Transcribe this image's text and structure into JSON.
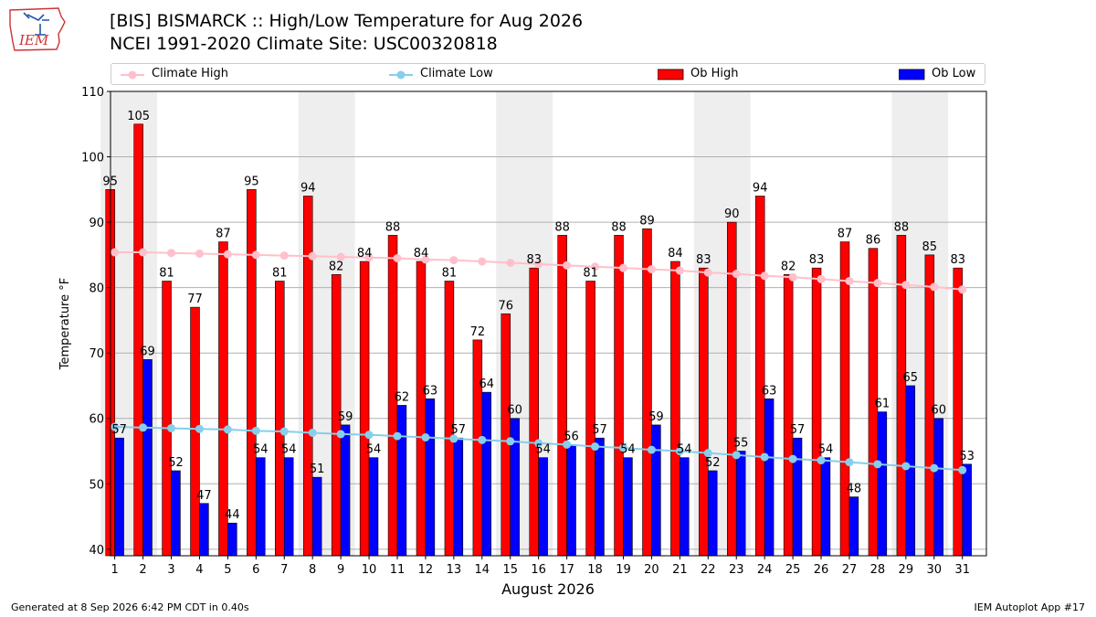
{
  "header": {
    "logo_text": "IEM",
    "title_line1": "[BIS] BISMARCK :: High/Low Temperature for Aug 2026",
    "title_line2": "NCEI 1991-2020 Climate Site: USC00320818"
  },
  "legend": {
    "location": "top",
    "items": [
      {
        "label": "Climate High",
        "kind": "line",
        "color": "#ffc0cb"
      },
      {
        "label": "Climate Low",
        "kind": "line",
        "color": "#87ceeb"
      },
      {
        "label": "Ob High",
        "kind": "bar",
        "color": "#ff0000"
      },
      {
        "label": "Ob Low",
        "kind": "bar",
        "color": "#0000ff"
      }
    ]
  },
  "chart_data": {
    "type": "bar",
    "title": "[BIS] BISMARCK :: High/Low Temperature for Aug 2026",
    "subtitle": "NCEI 1991-2020 Climate Site: USC00320818",
    "xlabel": "August 2026",
    "ylabel": "Temperature °F",
    "ylim": [
      39,
      110
    ],
    "yticks": [
      40,
      50,
      60,
      70,
      80,
      90,
      100,
      110
    ],
    "grid": "horizontal",
    "weekend_shading_days": [
      [
        1,
        2
      ],
      [
        8,
        9
      ],
      [
        15,
        16
      ],
      [
        22,
        23
      ],
      [
        29,
        30
      ]
    ],
    "categories": [
      "1",
      "2",
      "3",
      "4",
      "5",
      "6",
      "7",
      "8",
      "9",
      "10",
      "11",
      "12",
      "13",
      "14",
      "15",
      "16",
      "17",
      "18",
      "19",
      "20",
      "21",
      "22",
      "23",
      "24",
      "25",
      "26",
      "27",
      "28",
      "29",
      "30",
      "31"
    ],
    "series": [
      {
        "name": "Ob High",
        "kind": "bar",
        "color": "#ff0000",
        "values": [
          95,
          105,
          81,
          77,
          87,
          95,
          81,
          94,
          82,
          84,
          88,
          84,
          81,
          72,
          76,
          83,
          88,
          81,
          88,
          89,
          84,
          83,
          90,
          94,
          82,
          83,
          87,
          86,
          88,
          85,
          83
        ]
      },
      {
        "name": "Ob Low",
        "kind": "bar",
        "color": "#0000ff",
        "values": [
          57,
          69,
          52,
          47,
          44,
          54,
          54,
          51,
          59,
          54,
          62,
          63,
          57,
          64,
          60,
          54,
          56,
          57,
          54,
          59,
          54,
          52,
          55,
          63,
          57,
          54,
          48,
          61,
          65,
          60,
          53
        ]
      },
      {
        "name": "Climate High",
        "kind": "line",
        "color": "#ffc0cb",
        "values": [
          85.4,
          85.4,
          85.3,
          85.2,
          85.1,
          85.0,
          84.9,
          84.8,
          84.7,
          84.6,
          84.5,
          84.3,
          84.2,
          84.0,
          83.8,
          83.6,
          83.4,
          83.2,
          83.0,
          82.8,
          82.6,
          82.3,
          82.1,
          81.8,
          81.6,
          81.3,
          81.0,
          80.7,
          80.4,
          80.1,
          79.7
        ]
      },
      {
        "name": "Climate Low",
        "kind": "line",
        "color": "#87ceeb",
        "values": [
          58.7,
          58.6,
          58.5,
          58.4,
          58.3,
          58.1,
          58.0,
          57.8,
          57.6,
          57.5,
          57.3,
          57.1,
          56.9,
          56.7,
          56.5,
          56.2,
          56.0,
          55.7,
          55.5,
          55.2,
          55.0,
          54.7,
          54.4,
          54.1,
          53.8,
          53.6,
          53.3,
          53.0,
          52.7,
          52.4,
          52.1
        ]
      }
    ]
  },
  "footer": {
    "generated": "Generated at 8 Sep 2026 6:42 PM CDT in 0.40s",
    "app": "IEM Autoplot App #17"
  }
}
